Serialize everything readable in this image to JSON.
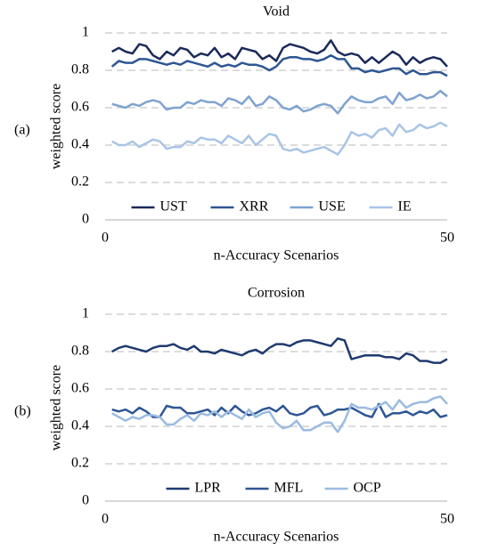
{
  "chart_data": [
    {
      "type": "line",
      "panel_label": "(a)",
      "title": "Void",
      "x_label": "n-Accuracy Scenarios",
      "y_label": "weighted score",
      "x": [
        1,
        2,
        3,
        4,
        5,
        6,
        7,
        8,
        9,
        10,
        11,
        12,
        13,
        14,
        15,
        16,
        17,
        18,
        19,
        20,
        21,
        22,
        23,
        24,
        25,
        26,
        27,
        28,
        29,
        30,
        31,
        32,
        33,
        34,
        35,
        36,
        37,
        38,
        39,
        40,
        41,
        42,
        43,
        44,
        45,
        46,
        47,
        48,
        49,
        50
      ],
      "xlim": [
        0,
        50
      ],
      "xticks": [
        0,
        50
      ],
      "ylim": [
        0,
        1
      ],
      "yticks": [
        0,
        0.2,
        0.4,
        0.6,
        0.8,
        1
      ],
      "grid": true,
      "legend": "bottom",
      "series": [
        {
          "name": "UST",
          "color": "#1b2a5a",
          "values": [
            0.9,
            0.92,
            0.9,
            0.89,
            0.94,
            0.93,
            0.88,
            0.86,
            0.9,
            0.88,
            0.92,
            0.91,
            0.87,
            0.89,
            0.88,
            0.92,
            0.87,
            0.89,
            0.86,
            0.92,
            0.91,
            0.9,
            0.86,
            0.88,
            0.85,
            0.92,
            0.94,
            0.93,
            0.92,
            0.9,
            0.89,
            0.91,
            0.96,
            0.9,
            0.88,
            0.89,
            0.88,
            0.84,
            0.87,
            0.84,
            0.87,
            0.9,
            0.88,
            0.83,
            0.87,
            0.84,
            0.86,
            0.87,
            0.86,
            0.82
          ]
        },
        {
          "name": "XRR",
          "color": "#2e5694",
          "values": [
            0.82,
            0.85,
            0.84,
            0.84,
            0.86,
            0.86,
            0.85,
            0.84,
            0.83,
            0.84,
            0.83,
            0.85,
            0.84,
            0.83,
            0.82,
            0.84,
            0.82,
            0.83,
            0.82,
            0.84,
            0.83,
            0.83,
            0.82,
            0.8,
            0.82,
            0.86,
            0.87,
            0.87,
            0.86,
            0.86,
            0.85,
            0.86,
            0.88,
            0.86,
            0.86,
            0.81,
            0.81,
            0.79,
            0.8,
            0.79,
            0.8,
            0.81,
            0.81,
            0.78,
            0.8,
            0.78,
            0.78,
            0.79,
            0.79,
            0.77
          ]
        },
        {
          "name": "USE",
          "color": "#7fa3d0",
          "values": [
            0.62,
            0.61,
            0.6,
            0.62,
            0.61,
            0.63,
            0.64,
            0.63,
            0.59,
            0.6,
            0.6,
            0.63,
            0.62,
            0.64,
            0.63,
            0.63,
            0.61,
            0.65,
            0.64,
            0.62,
            0.66,
            0.61,
            0.62,
            0.66,
            0.64,
            0.6,
            0.59,
            0.61,
            0.58,
            0.59,
            0.61,
            0.62,
            0.61,
            0.57,
            0.62,
            0.66,
            0.64,
            0.63,
            0.63,
            0.65,
            0.66,
            0.62,
            0.68,
            0.64,
            0.65,
            0.67,
            0.65,
            0.66,
            0.69,
            0.66
          ]
        },
        {
          "name": "IE",
          "color": "#a9c4e6",
          "values": [
            0.42,
            0.4,
            0.4,
            0.42,
            0.39,
            0.41,
            0.43,
            0.42,
            0.38,
            0.39,
            0.39,
            0.42,
            0.41,
            0.44,
            0.43,
            0.43,
            0.41,
            0.45,
            0.43,
            0.41,
            0.45,
            0.4,
            0.43,
            0.46,
            0.45,
            0.38,
            0.37,
            0.38,
            0.36,
            0.37,
            0.38,
            0.39,
            0.37,
            0.35,
            0.4,
            0.47,
            0.45,
            0.46,
            0.44,
            0.48,
            0.49,
            0.45,
            0.51,
            0.47,
            0.48,
            0.51,
            0.49,
            0.5,
            0.52,
            0.5
          ]
        }
      ]
    },
    {
      "type": "line",
      "panel_label": "(b)",
      "title": "Corrosion",
      "x_label": "n-Accuracy Scenarios",
      "y_label": "weighted score",
      "x": [
        1,
        2,
        3,
        4,
        5,
        6,
        7,
        8,
        9,
        10,
        11,
        12,
        13,
        14,
        15,
        16,
        17,
        18,
        19,
        20,
        21,
        22,
        23,
        24,
        25,
        26,
        27,
        28,
        29,
        30,
        31,
        32,
        33,
        34,
        35,
        36,
        37,
        38,
        39,
        40,
        41,
        42,
        43,
        44,
        45,
        46,
        47,
        48,
        49,
        50
      ],
      "xlim": [
        0,
        50
      ],
      "xticks": [
        0,
        50
      ],
      "ylim": [
        0,
        1
      ],
      "yticks": [
        0,
        0.2,
        0.4,
        0.6,
        0.8,
        1
      ],
      "grid": true,
      "legend": "bottom",
      "series": [
        {
          "name": "LPR",
          "color": "#1f3a6e",
          "values": [
            0.8,
            0.82,
            0.83,
            0.82,
            0.81,
            0.8,
            0.82,
            0.83,
            0.83,
            0.84,
            0.82,
            0.81,
            0.83,
            0.8,
            0.8,
            0.79,
            0.81,
            0.8,
            0.79,
            0.78,
            0.8,
            0.81,
            0.79,
            0.82,
            0.84,
            0.84,
            0.83,
            0.85,
            0.86,
            0.86,
            0.85,
            0.84,
            0.83,
            0.87,
            0.86,
            0.76,
            0.77,
            0.78,
            0.78,
            0.78,
            0.77,
            0.77,
            0.76,
            0.79,
            0.78,
            0.75,
            0.75,
            0.74,
            0.74,
            0.76
          ]
        },
        {
          "name": "MFL",
          "color": "#2e5694",
          "values": [
            0.49,
            0.48,
            0.49,
            0.47,
            0.5,
            0.48,
            0.45,
            0.45,
            0.51,
            0.5,
            0.5,
            0.47,
            0.47,
            0.48,
            0.49,
            0.46,
            0.5,
            0.47,
            0.51,
            0.48,
            0.46,
            0.47,
            0.49,
            0.5,
            0.48,
            0.51,
            0.47,
            0.46,
            0.47,
            0.5,
            0.51,
            0.46,
            0.47,
            0.49,
            0.49,
            0.5,
            0.48,
            0.46,
            0.45,
            0.52,
            0.45,
            0.47,
            0.47,
            0.48,
            0.46,
            0.48,
            0.47,
            0.49,
            0.45,
            0.46
          ]
        },
        {
          "name": "OCP",
          "color": "#9bbbe0",
          "values": [
            0.47,
            0.45,
            0.43,
            0.45,
            0.44,
            0.46,
            0.46,
            0.45,
            0.41,
            0.41,
            0.44,
            0.46,
            0.43,
            0.47,
            0.46,
            0.48,
            0.45,
            0.48,
            0.46,
            0.44,
            0.49,
            0.45,
            0.47,
            0.48,
            0.42,
            0.39,
            0.4,
            0.43,
            0.38,
            0.38,
            0.4,
            0.42,
            0.42,
            0.37,
            0.43,
            0.52,
            0.5,
            0.5,
            0.49,
            0.51,
            0.53,
            0.49,
            0.54,
            0.5,
            0.52,
            0.53,
            0.53,
            0.55,
            0.56,
            0.52
          ]
        }
      ]
    }
  ]
}
